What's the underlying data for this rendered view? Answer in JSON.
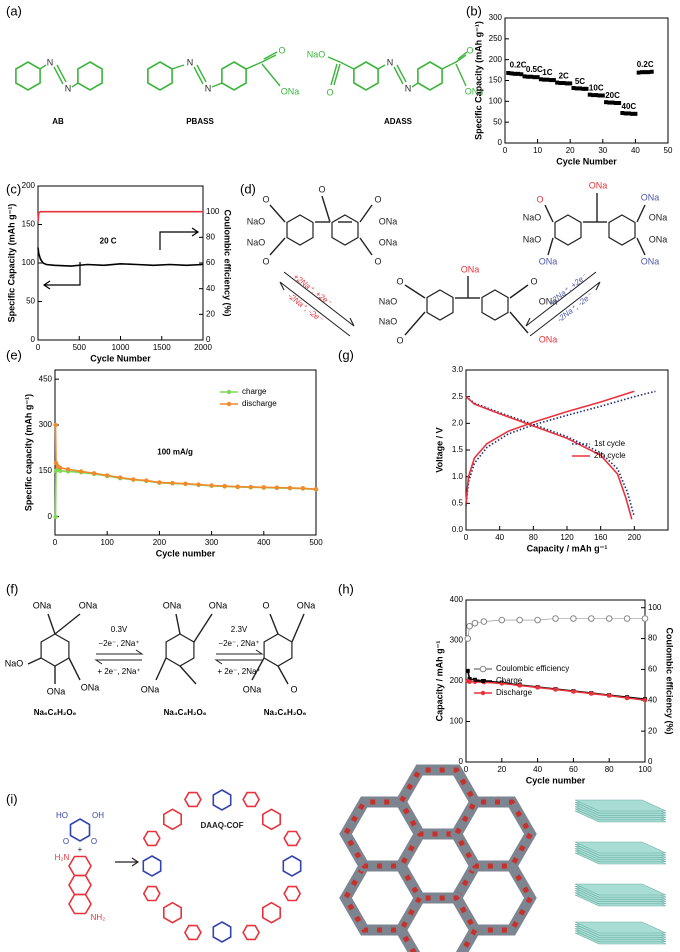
{
  "labels": {
    "a": "(a)",
    "b": "(b)",
    "c": "(c)",
    "d": "(d)",
    "e": "(e)",
    "f": "(f)",
    "g": "(g)",
    "h": "(h)",
    "i": "(i)"
  },
  "panel_a": {
    "names": [
      "AB",
      "PBASS",
      "ADASS"
    ],
    "atoms": [
      "N",
      "N",
      "N",
      "N",
      "O",
      "ONa",
      "NaO",
      "O",
      "N",
      "N",
      "O",
      "ONa"
    ]
  },
  "panel_d": {
    "texts": [
      "O",
      "O",
      "NaO",
      "NaO",
      "O",
      "O",
      "ONa",
      "ONa",
      "O",
      "ONa",
      "O",
      "NaO",
      "NaO",
      "O",
      "O",
      "ONa",
      "ONa",
      "ONa",
      "O",
      "NaO",
      "NaO",
      "ONa",
      "ONa",
      "ONa",
      "ONa",
      "ONa",
      "+2Na⁺, +2e⁻",
      "-2Na⁺, -2e⁻",
      "+2Na⁺, +2e⁻",
      "-2Na⁺, -2e⁻"
    ]
  },
  "panel_f": {
    "texts": [
      "ONa",
      "ONa",
      "NaO",
      "ONa",
      "ONa",
      "ONa",
      "ONa",
      "ONa",
      "O",
      "ONa",
      "ONa",
      "O",
      "Na₆C₈H₂O₆",
      "Na₄C₈H₂O₆",
      "Na₂C₈H₂O₆",
      "0.3V",
      "−2e⁻, 2Na⁺",
      "+ 2e⁻, 2Na⁺",
      "2.3V",
      "−2e⁻, 2Na⁺",
      "+ 2e⁻, 2Na⁺"
    ]
  },
  "panel_i": {
    "texts": [
      "DAAQ-COF",
      "+",
      "HO",
      "OH",
      "O",
      "O",
      "H₂N",
      "NH₂"
    ]
  },
  "chart_data": [
    {
      "type": "scatter",
      "xlabel": "Cycle Number",
      "ylabel": "Specific Capacity (mAh g⁻¹)",
      "xlim": [
        0,
        50
      ],
      "xticks": [
        0,
        10,
        20,
        30,
        40,
        50
      ],
      "ylim": [
        0,
        300
      ],
      "yticks": [
        0,
        50,
        100,
        150,
        200,
        250,
        300
      ],
      "series": [
        {
          "color": "#000000",
          "marker": "square",
          "x": [
            1,
            2,
            3,
            4,
            5,
            6,
            7,
            8,
            9,
            10,
            11,
            12,
            13,
            14,
            15,
            16,
            17,
            18,
            19,
            20,
            21,
            22,
            23,
            24,
            25,
            26,
            27,
            28,
            29,
            30,
            31,
            32,
            33,
            34,
            35,
            36,
            37,
            38,
            39,
            40,
            41,
            42,
            43,
            44,
            45
          ],
          "values": [
            168,
            167,
            166,
            166,
            165,
            160,
            159,
            159,
            158,
            158,
            153,
            152,
            152,
            151,
            151,
            145,
            144,
            144,
            143,
            143,
            132,
            131,
            131,
            130,
            130,
            116,
            115,
            115,
            114,
            114,
            98,
            97,
            97,
            96,
            96,
            72,
            71,
            71,
            70,
            70,
            169,
            170,
            170,
            170,
            171
          ]
        }
      ],
      "annotations": [
        {
          "text": "0.2C",
          "x": 4,
          "y": 186
        },
        {
          "text": "0.5C",
          "x": 9,
          "y": 176
        },
        {
          "text": "1C",
          "x": 13,
          "y": 168
        },
        {
          "text": "2C",
          "x": 18,
          "y": 160
        },
        {
          "text": "5C",
          "x": 23,
          "y": 147
        },
        {
          "text": "10C",
          "x": 28,
          "y": 131
        },
        {
          "text": "20C",
          "x": 33,
          "y": 113
        },
        {
          "text": "40C",
          "x": 38,
          "y": 87
        },
        {
          "text": "0.2C",
          "x": 43,
          "y": 188
        }
      ]
    },
    {
      "type": "line",
      "xlabel": "Cycle Number",
      "ylabel": "Specific Capacity (mAh g⁻¹)",
      "y2label": "Coulombic efficiency (%)",
      "xlim": [
        0,
        2000
      ],
      "xticks": [
        0,
        500,
        1000,
        1500,
        2000
      ],
      "ylim": [
        0,
        200
      ],
      "yticks": [
        0,
        50,
        100,
        150,
        200
      ],
      "y2lim": [
        0,
        120
      ],
      "y2ticks": [
        0,
        20,
        40,
        60,
        80,
        100
      ],
      "series": [
        {
          "color": "#000000",
          "x": [
            0,
            10,
            30,
            60,
            100,
            200,
            400,
            600,
            800,
            1000,
            1200,
            1400,
            1600,
            1800,
            2000
          ],
          "values": [
            120,
            112,
            105,
            100,
            98,
            97,
            96,
            98,
            97,
            99,
            98,
            97,
            98,
            97,
            98
          ]
        },
        {
          "color": "#e8323c",
          "axis": "y2",
          "x": [
            0,
            10,
            30,
            60,
            100,
            200,
            400,
            600,
            800,
            1000,
            1200,
            1400,
            1600,
            1800,
            2000
          ],
          "values": [
            92,
            99,
            100,
            100,
            100,
            100,
            100,
            100,
            100,
            100,
            100,
            100,
            100,
            100,
            100
          ]
        }
      ],
      "annotations": [
        {
          "text": "20 C",
          "x": 850,
          "y": 128
        }
      ]
    },
    {
      "type": "line",
      "xlabel": "Cycle number",
      "ylabel": "Specific capacity (mAh g⁻¹)",
      "xlim": [
        0,
        500
      ],
      "xticks": [
        0,
        100,
        200,
        300,
        400,
        500
      ],
      "ylim": [
        -60,
        480
      ],
      "yticks": [
        0,
        150,
        300,
        450
      ],
      "legend": "upper right",
      "series": [
        {
          "name": "charge",
          "color": "#7ed957",
          "marker": "circle",
          "x": [
            1,
            2,
            5,
            10,
            25,
            50,
            75,
            100,
            125,
            150,
            175,
            200,
            225,
            250,
            275,
            300,
            325,
            350,
            375,
            400,
            425,
            450,
            475,
            500
          ],
          "values": [
            0,
            150,
            155,
            150,
            148,
            145,
            140,
            133,
            126,
            121,
            117,
            111,
            109,
            107,
            104,
            101,
            99,
            97,
            96,
            95,
            94,
            93,
            92,
            89
          ]
        },
        {
          "name": "discharge",
          "color": "#f08a2c",
          "marker": "circle",
          "x": [
            1,
            2,
            5,
            10,
            25,
            50,
            75,
            100,
            125,
            150,
            175,
            200,
            225,
            250,
            275,
            300,
            325,
            350,
            375,
            400,
            425,
            450,
            475,
            500
          ],
          "values": [
            300,
            175,
            165,
            160,
            155,
            148,
            142,
            135,
            128,
            122,
            118,
            112,
            110,
            108,
            105,
            102,
            100,
            98,
            97,
            96,
            95,
            94,
            93,
            90
          ]
        }
      ],
      "annotations": [
        {
          "text": "100 mA/g",
          "x": 230,
          "y": 210
        }
      ]
    },
    {
      "type": "line",
      "xlabel": "Capacity / mAh g⁻¹",
      "ylabel": "Voltage / V",
      "xlim": [
        0,
        240
      ],
      "xticks": [
        0,
        40,
        80,
        120,
        160,
        200
      ],
      "ylim": [
        0,
        3
      ],
      "yticks": [
        {
          "value": 0,
          "label": "0.0"
        },
        0.5,
        {
          "value": 1,
          "label": "1.0"
        },
        1.5,
        {
          "value": 2,
          "label": "2.0"
        },
        2.5,
        {
          "value": 3,
          "label": "3.0"
        }
      ],
      "legend": "center right",
      "series": [
        {
          "name": "1st cycle",
          "color": "#1c2a6e",
          "line_style": "dotted",
          "x": [
            0,
            10,
            40,
            80,
            120,
            160,
            180,
            192,
            200,
            null,
            0,
            3,
            10,
            25,
            50,
            80,
            120,
            160,
            200,
            225
          ],
          "values": [
            2.5,
            2.38,
            2.2,
            1.98,
            1.75,
            1.45,
            1.15,
            0.7,
            0.25,
            null,
            0.45,
            0.9,
            1.25,
            1.55,
            1.8,
            1.97,
            2.15,
            2.32,
            2.5,
            2.6
          ]
        },
        {
          "name": "2th cycle",
          "color": "#e8323c",
          "x": [
            0,
            10,
            40,
            80,
            120,
            160,
            180,
            190,
            197,
            null,
            0,
            3,
            10,
            25,
            50,
            80,
            120,
            160,
            200
          ],
          "values": [
            2.5,
            2.36,
            2.18,
            1.95,
            1.72,
            1.4,
            1.05,
            0.6,
            0.2,
            null,
            0.5,
            1.0,
            1.35,
            1.62,
            1.85,
            2.02,
            2.22,
            2.4,
            2.6
          ]
        }
      ]
    },
    {
      "type": "line",
      "xlabel": "Cycle number",
      "ylabel": "Capacity / mAh g⁻¹",
      "y2label": "Coulombic efficiency (%)",
      "xlim": [
        0,
        100
      ],
      "xticks": [
        0,
        20,
        40,
        60,
        80,
        100
      ],
      "ylim": [
        0,
        400
      ],
      "yticks": [
        0,
        100,
        200,
        300,
        400
      ],
      "y2lim": [
        0,
        105
      ],
      "y2ticks": [
        0,
        20,
        40,
        60,
        80,
        100
      ],
      "legend": "center left",
      "series": [
        {
          "name": "Coulombic efficiency",
          "color": "#888888",
          "marker": "open-circle",
          "axis": "y2",
          "x": [
            1,
            2,
            5,
            10,
            20,
            30,
            40,
            50,
            60,
            70,
            80,
            90,
            100
          ],
          "values": [
            80,
            88,
            90,
            91,
            92,
            92,
            92,
            93,
            93,
            93,
            93,
            93,
            93
          ]
        },
        {
          "name": "Charge",
          "color": "#000000",
          "marker": "square",
          "x": [
            1,
            2,
            5,
            10,
            20,
            30,
            40,
            50,
            60,
            70,
            80,
            90,
            100
          ],
          "values": [
            225,
            205,
            203,
            200,
            196,
            190,
            185,
            180,
            175,
            170,
            165,
            160,
            155
          ]
        },
        {
          "name": "Discharge",
          "color": "#e8323c",
          "marker": "circle",
          "x": [
            1,
            2,
            5,
            10,
            20,
            30,
            40,
            50,
            60,
            70,
            80,
            90,
            100
          ],
          "values": [
            200,
            198,
            198,
            197,
            194,
            189,
            184,
            179,
            174,
            169,
            164,
            158,
            153
          ]
        }
      ]
    }
  ]
}
